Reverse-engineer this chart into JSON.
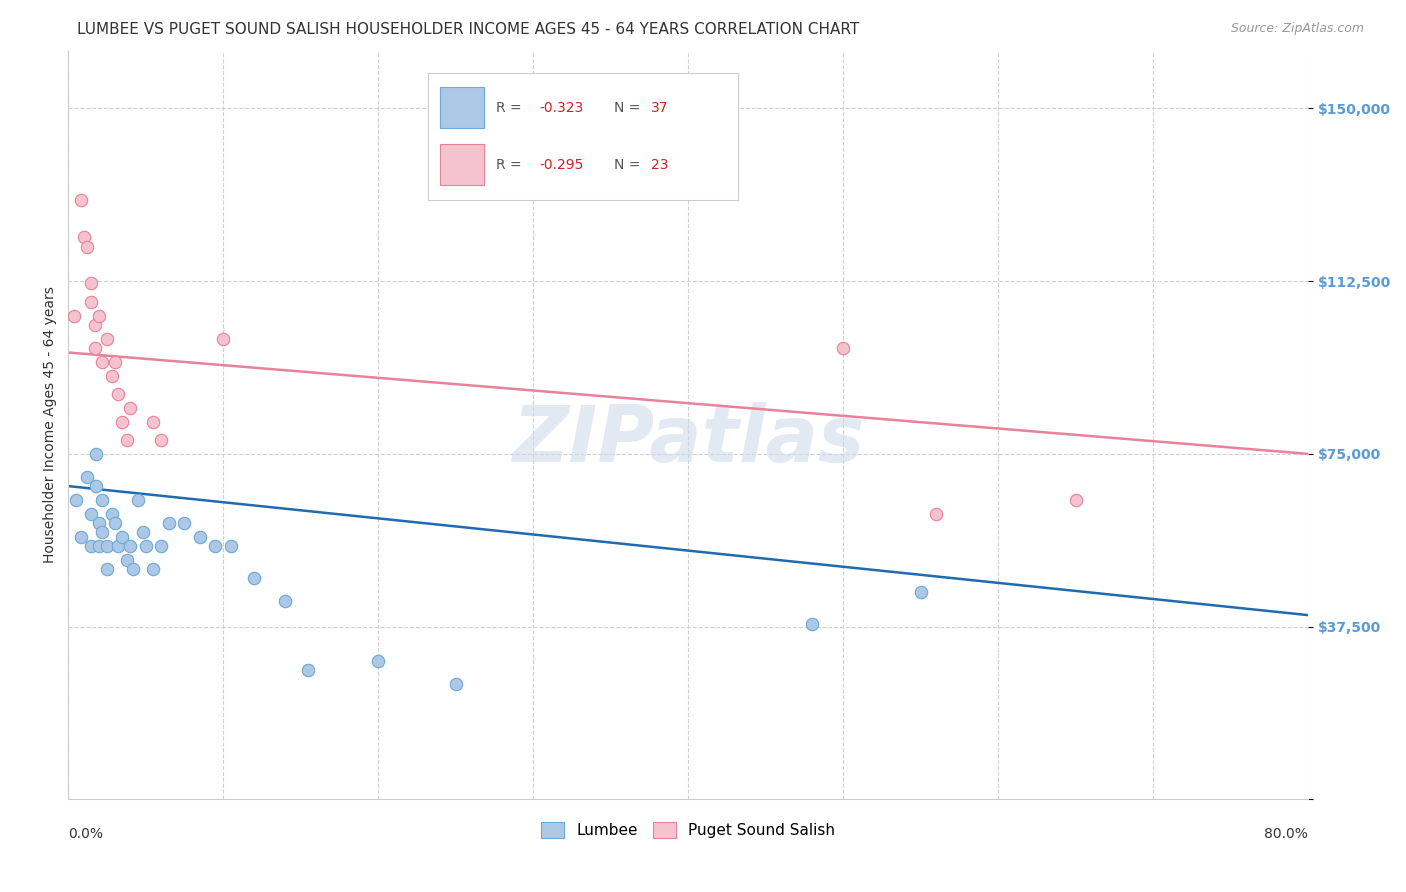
{
  "title": "LUMBEE VS PUGET SOUND SALISH HOUSEHOLDER INCOME AGES 45 - 64 YEARS CORRELATION CHART",
  "source": "Source: ZipAtlas.com",
  "ylabel": "Householder Income Ages 45 - 64 years",
  "xlim": [
    0.0,
    0.8
  ],
  "ylim": [
    0,
    162500
  ],
  "yticks": [
    0,
    37500,
    75000,
    112500,
    150000
  ],
  "ytick_labels": [
    "",
    "$37,500",
    "$75,000",
    "$112,500",
    "$150,000"
  ],
  "watermark": "ZIPatlas",
  "lumbee_color": "#adc8e6",
  "lumbee_edge": "#6aaad4",
  "lumbee_line": "#1f6bb0",
  "puget_color": "#f5c2d0",
  "puget_edge": "#e8829a",
  "puget_line": "#e8829a",
  "lumbee_x": [
    0.005,
    0.008,
    0.012,
    0.015,
    0.015,
    0.018,
    0.018,
    0.02,
    0.02,
    0.022,
    0.022,
    0.025,
    0.025,
    0.028,
    0.03,
    0.032,
    0.035,
    0.038,
    0.04,
    0.042,
    0.045,
    0.048,
    0.05,
    0.055,
    0.06,
    0.065,
    0.075,
    0.085,
    0.095,
    0.105,
    0.12,
    0.14,
    0.155,
    0.2,
    0.25,
    0.48,
    0.55
  ],
  "lumbee_y": [
    65000,
    57000,
    70000,
    62000,
    55000,
    75000,
    68000,
    60000,
    55000,
    65000,
    58000,
    55000,
    50000,
    62000,
    60000,
    55000,
    57000,
    52000,
    55000,
    50000,
    65000,
    58000,
    55000,
    50000,
    55000,
    60000,
    60000,
    57000,
    55000,
    55000,
    48000,
    43000,
    28000,
    30000,
    25000,
    38000,
    45000
  ],
  "puget_x": [
    0.004,
    0.008,
    0.01,
    0.012,
    0.015,
    0.015,
    0.017,
    0.017,
    0.02,
    0.022,
    0.025,
    0.028,
    0.03,
    0.032,
    0.035,
    0.038,
    0.04,
    0.055,
    0.06,
    0.1,
    0.5,
    0.56,
    0.65
  ],
  "puget_y": [
    105000,
    130000,
    122000,
    120000,
    112000,
    108000,
    103000,
    98000,
    105000,
    95000,
    100000,
    92000,
    95000,
    88000,
    82000,
    78000,
    85000,
    82000,
    78000,
    100000,
    98000,
    62000,
    65000
  ],
  "background_color": "#ffffff",
  "grid_color": "#d0d0d0",
  "title_fontsize": 11,
  "axis_label_fontsize": 10,
  "tick_fontsize": 10,
  "marker_size": 80,
  "lumbee_trendline": [
    0.0,
    68000,
    0.8,
    40000
  ],
  "puget_trendline": [
    0.0,
    97000,
    0.8,
    75000
  ]
}
